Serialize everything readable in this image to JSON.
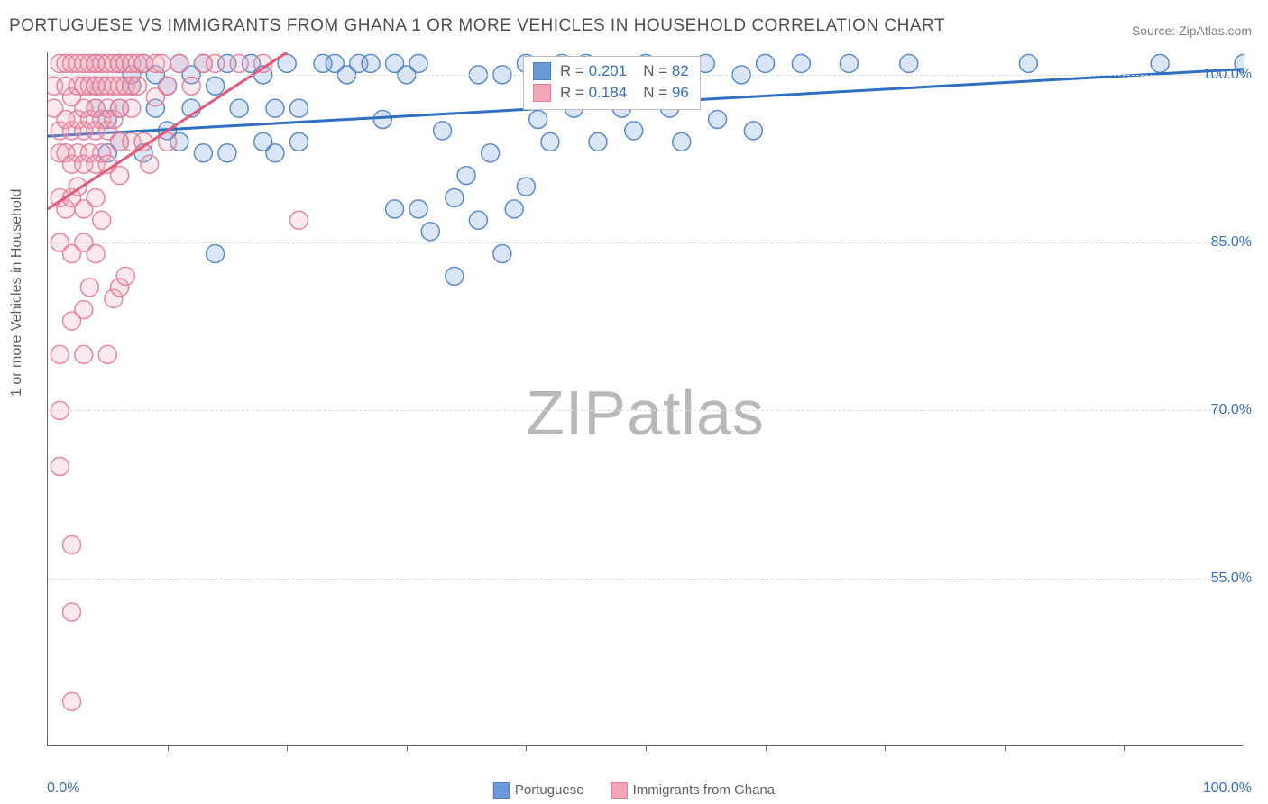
{
  "title": "PORTUGUESE VS IMMIGRANTS FROM GHANA 1 OR MORE VEHICLES IN HOUSEHOLD CORRELATION CHART",
  "source": "Source: ZipAtlas.com",
  "ylabel": "1 or more Vehicles in Household",
  "watermark": {
    "left": "ZIP",
    "right": "atlas"
  },
  "chart": {
    "type": "scatter",
    "xlim": [
      0,
      100
    ],
    "ylim": [
      40,
      102
    ],
    "xtick_step": 10,
    "xticks_labeled": [
      {
        "v": 0,
        "label": "0.0%"
      },
      {
        "v": 100,
        "label": "100.0%"
      }
    ],
    "yticks": [
      {
        "v": 55,
        "label": "55.0%"
      },
      {
        "v": 70,
        "label": "70.0%"
      },
      {
        "v": 85,
        "label": "85.0%"
      },
      {
        "v": 100,
        "label": "100.0%"
      }
    ],
    "grid_color": "#dcdcdc",
    "axis_color": "#666666",
    "background": "#ffffff",
    "marker_radius": 10,
    "fill_opacity": 0.25,
    "stroke_opacity": 0.9,
    "stroke_width": 1.5,
    "series": [
      {
        "name": "Portuguese",
        "color": "#6a9bd8",
        "stroke": "#4a7fc4",
        "R": "0.201",
        "N": "82",
        "trend": {
          "x1": 0,
          "y1": 94.5,
          "x2": 100,
          "y2": 100.5,
          "color": "#2e6fc2",
          "width": 3
        },
        "points": [
          [
            4,
            97
          ],
          [
            4,
            101
          ],
          [
            4,
            99
          ],
          [
            5,
            96
          ],
          [
            5,
            93
          ],
          [
            6,
            101
          ],
          [
            6,
            97
          ],
          [
            6,
            94
          ],
          [
            7,
            100
          ],
          [
            7,
            99
          ],
          [
            8,
            101
          ],
          [
            8,
            93
          ],
          [
            9,
            100
          ],
          [
            9,
            97
          ],
          [
            10,
            99
          ],
          [
            10,
            95
          ],
          [
            11,
            101
          ],
          [
            11,
            94
          ],
          [
            12,
            97
          ],
          [
            12,
            100
          ],
          [
            13,
            93
          ],
          [
            13,
            101
          ],
          [
            14,
            84
          ],
          [
            14,
            99
          ],
          [
            15,
            93
          ],
          [
            15,
            101
          ],
          [
            16,
            97
          ],
          [
            17,
            101
          ],
          [
            18,
            100
          ],
          [
            18,
            94
          ],
          [
            19,
            97
          ],
          [
            19,
            93
          ],
          [
            20,
            101
          ],
          [
            21,
            94
          ],
          [
            21,
            97
          ],
          [
            23,
            101
          ],
          [
            24,
            101
          ],
          [
            25,
            100
          ],
          [
            26,
            101
          ],
          [
            27,
            101
          ],
          [
            28,
            96
          ],
          [
            29,
            88
          ],
          [
            29,
            101
          ],
          [
            30,
            100
          ],
          [
            31,
            88
          ],
          [
            31,
            101
          ],
          [
            32,
            86
          ],
          [
            33,
            95
          ],
          [
            34,
            89
          ],
          [
            34,
            82
          ],
          [
            35,
            91
          ],
          [
            36,
            87
          ],
          [
            36,
            100
          ],
          [
            37,
            93
          ],
          [
            38,
            84
          ],
          [
            38,
            100
          ],
          [
            39,
            88
          ],
          [
            40,
            90
          ],
          [
            40,
            101
          ],
          [
            41,
            96
          ],
          [
            42,
            94
          ],
          [
            43,
            101
          ],
          [
            44,
            97
          ],
          [
            45,
            101
          ],
          [
            46,
            94
          ],
          [
            47,
            100
          ],
          [
            48,
            97
          ],
          [
            49,
            95
          ],
          [
            50,
            101
          ],
          [
            52,
            97
          ],
          [
            53,
            94
          ],
          [
            55,
            101
          ],
          [
            56,
            96
          ],
          [
            58,
            100
          ],
          [
            59,
            95
          ],
          [
            60,
            101
          ],
          [
            63,
            101
          ],
          [
            67,
            101
          ],
          [
            72,
            101
          ],
          [
            82,
            101
          ],
          [
            93,
            101
          ],
          [
            100,
            101
          ]
        ]
      },
      {
        "name": "Immigrants from Ghana",
        "color": "#f2a6b8",
        "stroke": "#e77a95",
        "R": "0.184",
        "N": "96",
        "trend": {
          "x1": 0,
          "y1": 88,
          "x2": 20,
          "y2": 102,
          "color": "#e05a7a",
          "width": 3
        },
        "points": [
          [
            0.5,
            97
          ],
          [
            0.5,
            99
          ],
          [
            1,
            101
          ],
          [
            1,
            95
          ],
          [
            1,
            93
          ],
          [
            1,
            89
          ],
          [
            1,
            85
          ],
          [
            1,
            75
          ],
          [
            1,
            70
          ],
          [
            1,
            65
          ],
          [
            1.5,
            101
          ],
          [
            1.5,
            99
          ],
          [
            1.5,
            96
          ],
          [
            1.5,
            93
          ],
          [
            1.5,
            88
          ],
          [
            2,
            101
          ],
          [
            2,
            98
          ],
          [
            2,
            95
          ],
          [
            2,
            92
          ],
          [
            2,
            89
          ],
          [
            2,
            84
          ],
          [
            2,
            78
          ],
          [
            2,
            58
          ],
          [
            2,
            52
          ],
          [
            2,
            44
          ],
          [
            2.5,
            101
          ],
          [
            2.5,
            99
          ],
          [
            2.5,
            96
          ],
          [
            2.5,
            93
          ],
          [
            2.5,
            90
          ],
          [
            3,
            101
          ],
          [
            3,
            99
          ],
          [
            3,
            97
          ],
          [
            3,
            95
          ],
          [
            3,
            92
          ],
          [
            3,
            88
          ],
          [
            3,
            85
          ],
          [
            3,
            79
          ],
          [
            3,
            75
          ],
          [
            3.5,
            101
          ],
          [
            3.5,
            99
          ],
          [
            3.5,
            96
          ],
          [
            3.5,
            93
          ],
          [
            3.5,
            81
          ],
          [
            4,
            101
          ],
          [
            4,
            99
          ],
          [
            4,
            97
          ],
          [
            4,
            95
          ],
          [
            4,
            92
          ],
          [
            4,
            89
          ],
          [
            4,
            84
          ],
          [
            4.5,
            101
          ],
          [
            4.5,
            99
          ],
          [
            4.5,
            96
          ],
          [
            4.5,
            93
          ],
          [
            4.5,
            87
          ],
          [
            5,
            101
          ],
          [
            5,
            99
          ],
          [
            5,
            97
          ],
          [
            5,
            95
          ],
          [
            5,
            92
          ],
          [
            5,
            75
          ],
          [
            5.5,
            101
          ],
          [
            5.5,
            99
          ],
          [
            5.5,
            96
          ],
          [
            5.5,
            80
          ],
          [
            6,
            101
          ],
          [
            6,
            99
          ],
          [
            6,
            97
          ],
          [
            6,
            94
          ],
          [
            6,
            91
          ],
          [
            6,
            81
          ],
          [
            6.5,
            101
          ],
          [
            6.5,
            99
          ],
          [
            6.5,
            82
          ],
          [
            7,
            101
          ],
          [
            7,
            99
          ],
          [
            7,
            97
          ],
          [
            7,
            94
          ],
          [
            7.5,
            101
          ],
          [
            7.5,
            99
          ],
          [
            8,
            101
          ],
          [
            8,
            94
          ],
          [
            8.5,
            92
          ],
          [
            9,
            101
          ],
          [
            9,
            98
          ],
          [
            9.5,
            101
          ],
          [
            10,
            99
          ],
          [
            10,
            94
          ],
          [
            11,
            101
          ],
          [
            12,
            99
          ],
          [
            13,
            101
          ],
          [
            14,
            101
          ],
          [
            16,
            101
          ],
          [
            18,
            101
          ],
          [
            21,
            87
          ]
        ]
      }
    ],
    "legend_bottom": [
      {
        "label": "Portuguese",
        "color": "#6a9bd8",
        "stroke": "#4a7fc4"
      },
      {
        "label": "Immigrants from Ghana",
        "color": "#f2a6b8",
        "stroke": "#e77a95"
      }
    ]
  }
}
